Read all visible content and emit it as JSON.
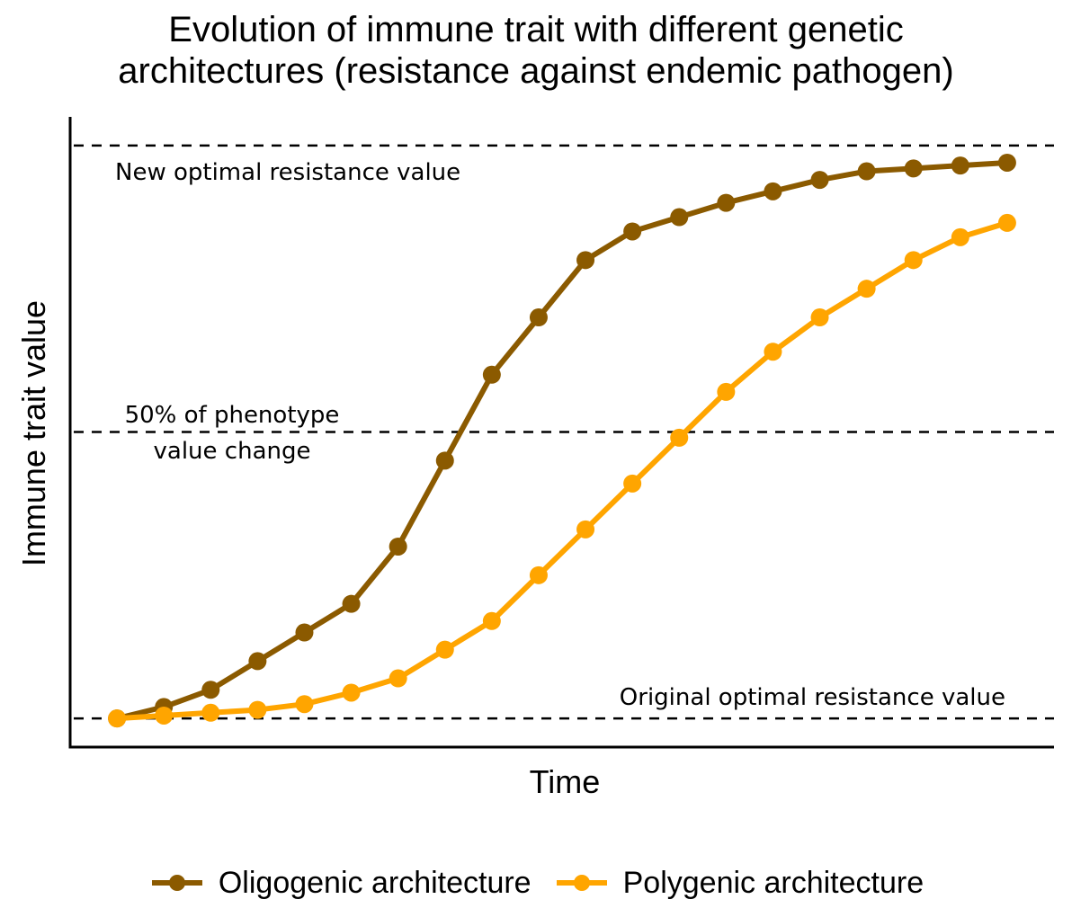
{
  "chart_data": {
    "type": "line",
    "title": "Evolution of immune trait with different genetic architectures (resistance against endemic pathogen)",
    "title_lines": [
      "Evolution of immune trait with different genetic",
      "architectures (resistance against endemic pathogen)"
    ],
    "xlabel": "Time",
    "ylabel": "Immune trait value",
    "x": [
      1,
      2,
      3,
      4,
      5,
      6,
      7,
      8,
      9,
      10,
      11,
      12,
      13,
      14,
      15,
      16,
      17,
      18,
      19,
      20
    ],
    "xlim": [
      0,
      21
    ],
    "ylim": [
      -0.05,
      1.05
    ],
    "series": [
      {
        "name": "Oligogenic architecture",
        "color": "#8B5A00",
        "values": [
          0.0,
          0.02,
          0.05,
          0.1,
          0.15,
          0.2,
          0.3,
          0.45,
          0.6,
          0.7,
          0.8,
          0.85,
          0.875,
          0.9,
          0.92,
          0.94,
          0.955,
          0.96,
          0.965,
          0.97
        ]
      },
      {
        "name": "Polygenic architecture",
        "color": "#FFA500",
        "values": [
          0.0,
          0.005,
          0.01,
          0.015,
          0.025,
          0.045,
          0.07,
          0.12,
          0.17,
          0.25,
          0.33,
          0.41,
          0.49,
          0.57,
          0.64,
          0.7,
          0.75,
          0.8,
          0.84,
          0.865
        ]
      }
    ],
    "reference_lines": [
      {
        "y": 1.0,
        "label": "New optimal resistance value",
        "style": "dashed"
      },
      {
        "y": 0.5,
        "label_lines": [
          "50% of phenotype",
          "value change"
        ],
        "style": "dashed"
      },
      {
        "y": 0.0,
        "label": "Original optimal resistance value",
        "style": "dashed"
      }
    ],
    "grid": false,
    "ticks": false,
    "legend_position": "bottom"
  }
}
